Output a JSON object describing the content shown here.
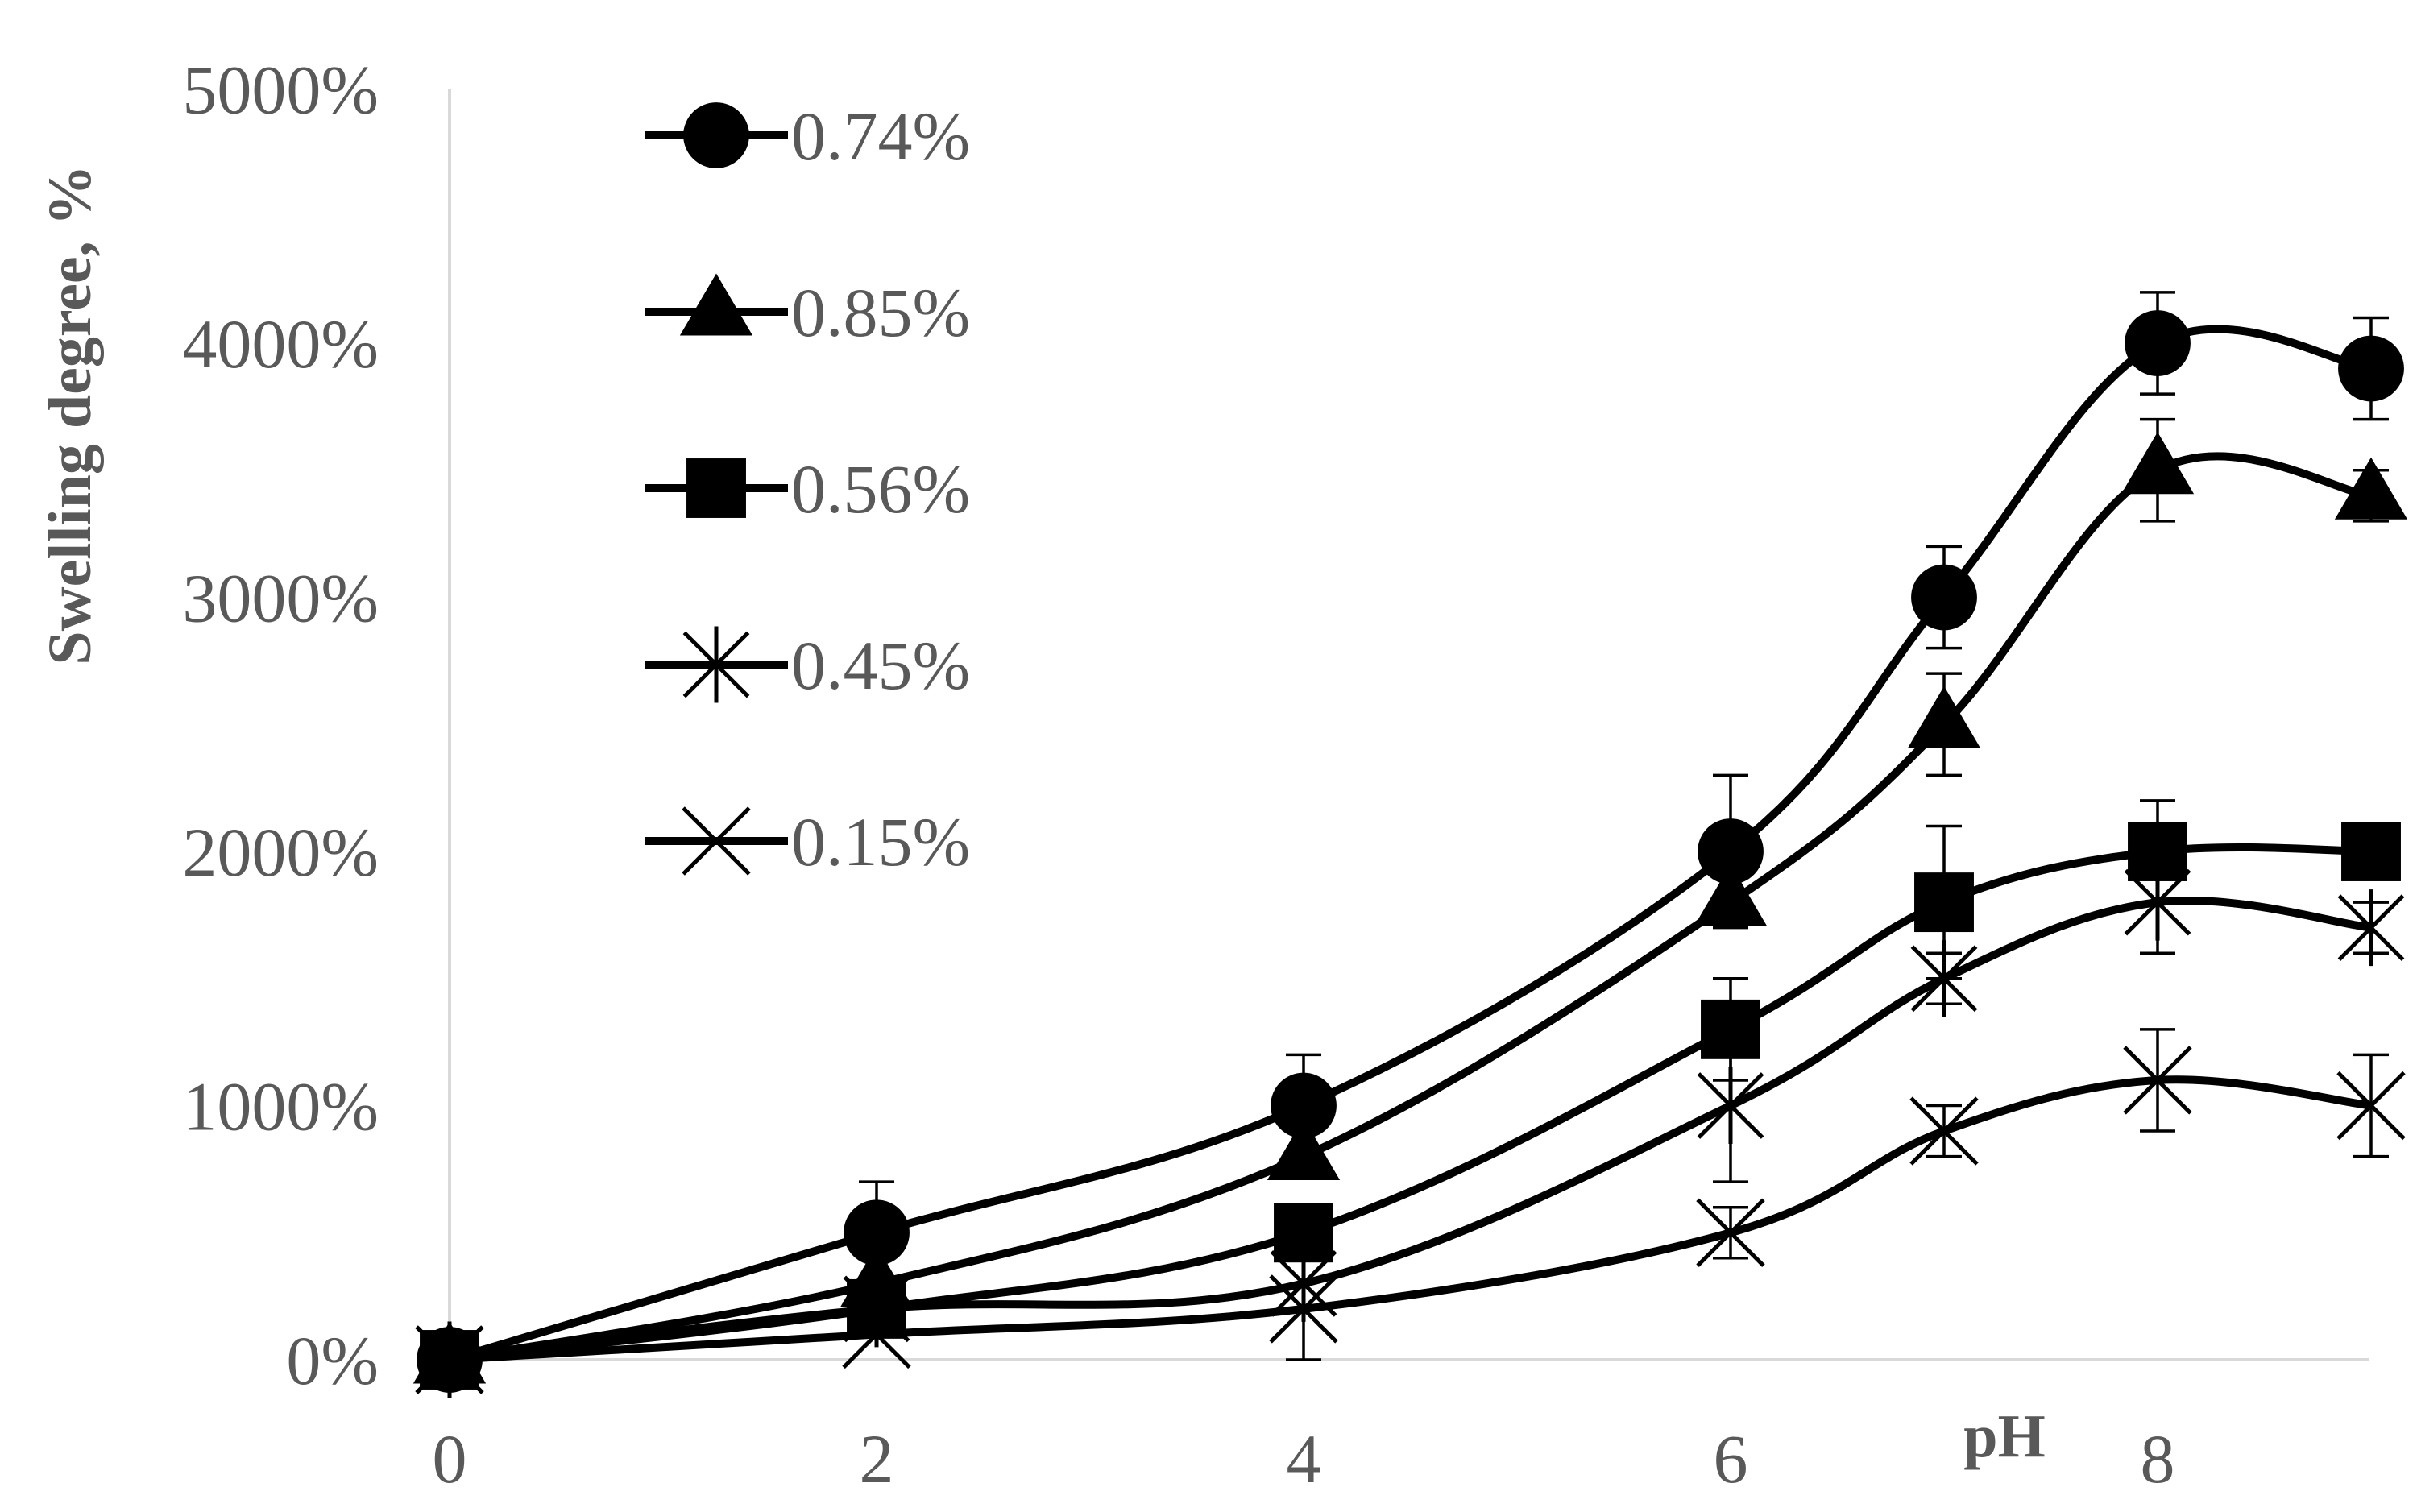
{
  "chart_data": {
    "type": "line",
    "ylabel": "Swelling degree, %",
    "xlabel": "pH",
    "x_ticks": [
      "0",
      "2",
      "4",
      "6",
      "8"
    ],
    "y_ticks": [
      "0%",
      "1000%",
      "2000%",
      "3000%",
      "4000%",
      "5000%"
    ],
    "xlim": [
      0,
      9
    ],
    "ylim": [
      0,
      5000
    ],
    "grid": false,
    "smooth": true,
    "legend_position": "top-left",
    "series": [
      {
        "name": "0.74%",
        "marker": "circle",
        "x": [
          0,
          2,
          4,
          6,
          7,
          8,
          9
        ],
        "y": [
          0,
          500,
          1000,
          2000,
          3000,
          4000,
          3900
        ],
        "error": [
          0,
          200,
          200,
          300,
          200,
          200,
          200
        ]
      },
      {
        "name": "0.85%",
        "marker": "triangle",
        "x": [
          0,
          2,
          4,
          6,
          7,
          8,
          9
        ],
        "y": [
          0,
          300,
          800,
          1800,
          2500,
          3500,
          3400
        ],
        "error": [
          0,
          0,
          0,
          0,
          200,
          200,
          100
        ]
      },
      {
        "name": "0.56%",
        "marker": "square",
        "x": [
          0,
          2,
          4,
          6,
          7,
          8,
          9
        ],
        "y": [
          0,
          200,
          500,
          1300,
          1800,
          2000,
          2000
        ],
        "error": [
          0,
          0,
          100,
          200,
          300,
          200,
          0
        ]
      },
      {
        "name": "0.45%",
        "marker": "asterisk",
        "x": [
          0,
          2,
          4,
          6,
          7,
          8,
          9
        ],
        "y": [
          0,
          200,
          300,
          1000,
          1500,
          1800,
          1700
        ],
        "error": [
          0,
          0,
          0,
          300,
          100,
          200,
          100
        ]
      },
      {
        "name": "0.15%",
        "marker": "x",
        "x": [
          0,
          2,
          4,
          6,
          7,
          8,
          9
        ],
        "y": [
          0,
          100,
          200,
          500,
          900,
          1100,
          1000
        ],
        "error": [
          0,
          0,
          200,
          100,
          100,
          200,
          200
        ]
      }
    ],
    "colors": {
      "line": "#000000",
      "axis": "#d9d9d9",
      "text": "#595959"
    }
  }
}
